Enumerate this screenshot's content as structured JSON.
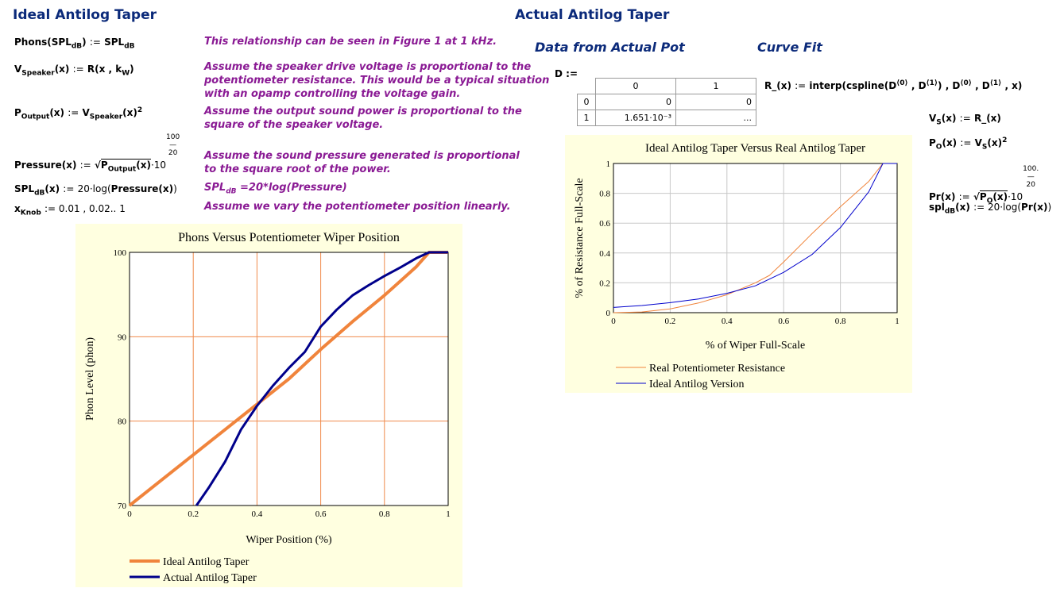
{
  "left": {
    "title": "Ideal Antilog Taper",
    "equations": [
      {
        "lhs": "Phons",
        "rhs": "SPL"
      },
      {
        "lhs": "V",
        "rhs": "R"
      },
      {
        "lhs": "P",
        "rhs": "V"
      },
      {
        "lhs": "Pressure",
        "rhs": "10"
      },
      {
        "lhs": "SPL",
        "rhs": "20·log(Pressure(x))"
      },
      {
        "lhs": "x",
        "rhs": "0.01 , 0.02.. 1"
      }
    ],
    "comments": [
      "This relationship can be seen in Figure 1 at 1 kHz.",
      "Assume the speaker drive voltage is proportional to the\npotentiometer resistance. This would be a typical situation\nwith an opamp controlling the voltage gain.",
      "Assume the output sound power is proportional to the\nsquare of the speaker voltage.",
      "Assume the sound pressure generated is proportional\nto the square root of the power.",
      "=20*log(Pressure)",
      "Assume we vary the potentiometer position linearly."
    ]
  },
  "right": {
    "title": "Actual Antilog Taper",
    "data_heading": "Data from Actual Pot",
    "fit_heading": "Curve Fit",
    "matrix": {
      "name": "D :=",
      "col_headers": [
        "0",
        "1"
      ],
      "rows": [
        {
          "index": "0",
          "c0": "0",
          "c1": "0"
        },
        {
          "index": "1",
          "c0": "1.651·10⁻³",
          "c1": "..."
        }
      ]
    }
  },
  "chart_data": [
    {
      "type": "line",
      "title": "Phons Versus Potentiometer Wiper Position",
      "xlabel": "Wiper Position (%)",
      "ylabel": "Phon Level (phon)",
      "xlim": [
        0,
        1
      ],
      "ylim": [
        70,
        100
      ],
      "xticks": [
        "0",
        "0.2",
        "0.4",
        "0.6",
        "0.8",
        "1"
      ],
      "yticks": [
        "70",
        "80",
        "90",
        "100"
      ],
      "grid": true,
      "legend_position": "bottom",
      "series": [
        {
          "name": "Ideal Antilog Taper",
          "color": "#f0843c",
          "x": [
            0,
            0.1,
            0.2,
            0.3,
            0.4,
            0.5,
            0.6,
            0.7,
            0.8,
            0.9,
            0.94,
            1
          ],
          "y": [
            70,
            73,
            76,
            79,
            82,
            85,
            88.5,
            91.8,
            94.9,
            98.3,
            100,
            100
          ]
        },
        {
          "name": "Actual Antilog Taper",
          "color": "#00008b",
          "x": [
            0.21,
            0.25,
            0.3,
            0.35,
            0.4,
            0.45,
            0.5,
            0.55,
            0.6,
            0.65,
            0.7,
            0.75,
            0.8,
            0.85,
            0.9,
            0.94,
            1
          ],
          "y": [
            70,
            72.2,
            75.2,
            79,
            81.8,
            84.2,
            86.3,
            88.2,
            91.2,
            93.2,
            94.9,
            96.1,
            97.2,
            98.2,
            99.3,
            100,
            100
          ]
        }
      ]
    },
    {
      "type": "line",
      "title": "Ideal Antilog Taper Versus Real Antilog Taper",
      "xlabel": "% of Wiper Full-Scale",
      "ylabel": "% of Resistance Full-Scale",
      "xlim": [
        0,
        1
      ],
      "ylim": [
        0,
        1
      ],
      "xticks": [
        "0",
        "0.2",
        "0.4",
        "0.6",
        "0.8",
        "1"
      ],
      "yticks": [
        "0",
        "0.2",
        "0.4",
        "0.6",
        "0.8",
        "1"
      ],
      "grid": true,
      "legend_position": "bottom",
      "series": [
        {
          "name": "Real Potentiometer Resistance",
          "color": "#f0843c",
          "x": [
            0,
            0.1,
            0.2,
            0.3,
            0.4,
            0.5,
            0.55,
            0.6,
            0.7,
            0.8,
            0.9,
            0.95,
            1
          ],
          "y": [
            0,
            0.005,
            0.025,
            0.065,
            0.12,
            0.2,
            0.25,
            0.34,
            0.53,
            0.71,
            0.88,
            1,
            1
          ]
        },
        {
          "name": "Ideal Antilog Version",
          "color": "#0000cc",
          "x": [
            0,
            0.1,
            0.2,
            0.3,
            0.4,
            0.5,
            0.6,
            0.7,
            0.8,
            0.9,
            0.95,
            1
          ],
          "y": [
            0.035,
            0.048,
            0.067,
            0.092,
            0.13,
            0.18,
            0.27,
            0.39,
            0.57,
            0.81,
            1,
            1
          ]
        }
      ]
    }
  ]
}
